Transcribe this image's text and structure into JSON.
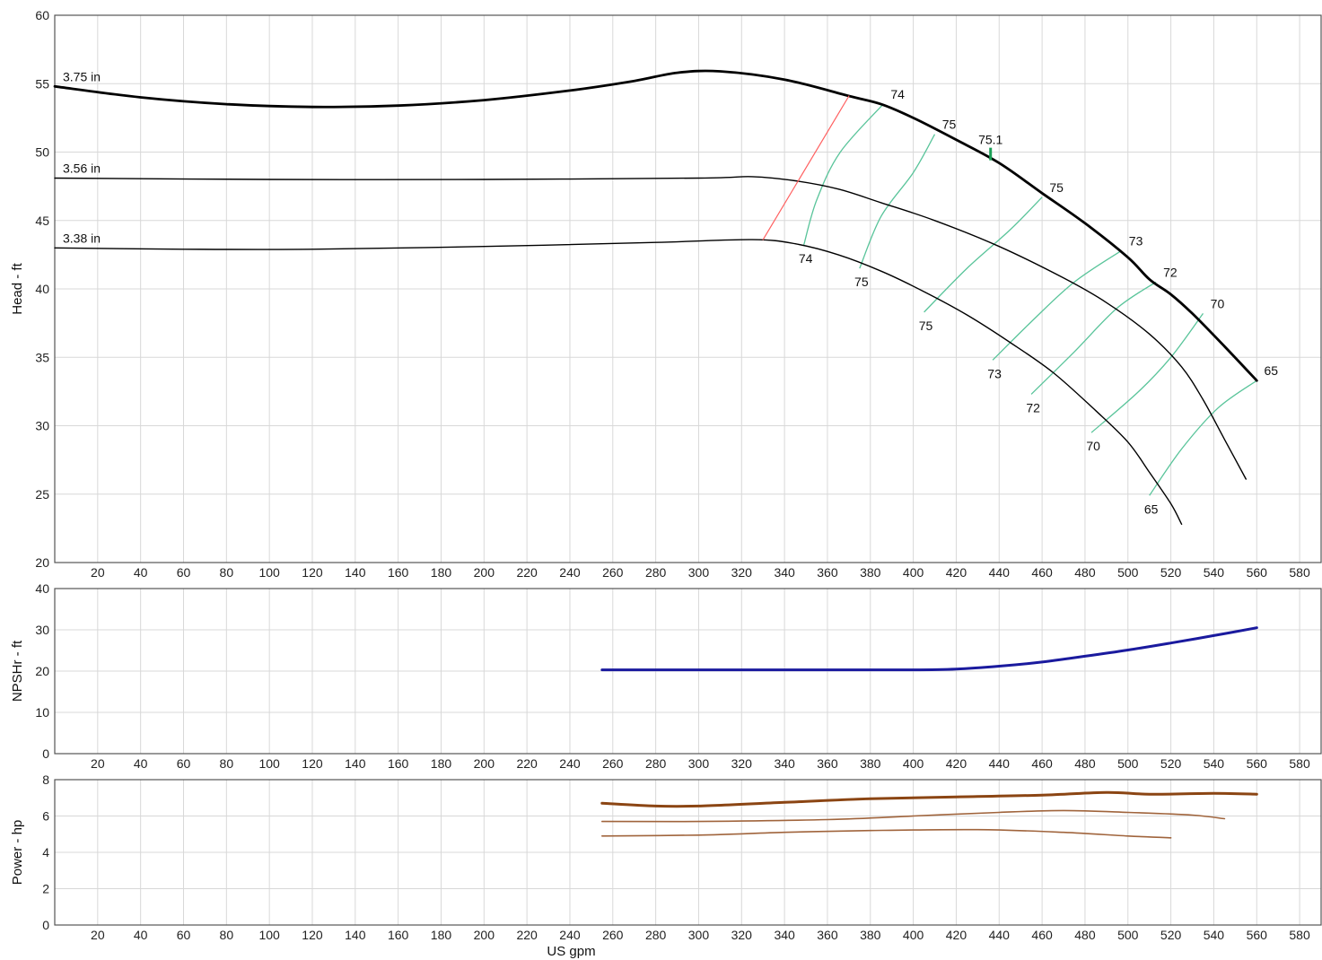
{
  "chart_data": [
    {
      "type": "line",
      "panel": "head",
      "ylabel": "Head - ft",
      "xlim": [
        0,
        590
      ],
      "ylim": [
        20,
        60
      ],
      "x_ticks": [
        20,
        40,
        60,
        80,
        100,
        120,
        140,
        160,
        180,
        200,
        220,
        240,
        260,
        280,
        300,
        320,
        340,
        360,
        380,
        400,
        420,
        440,
        460,
        480,
        500,
        520,
        540,
        560,
        580
      ],
      "y_ticks": [
        20,
        25,
        30,
        35,
        40,
        45,
        50,
        55,
        60
      ],
      "grid": true,
      "series": [
        {
          "name": "3.75 in",
          "role": "impeller",
          "color": "#000000",
          "points": [
            [
              0,
              54.8
            ],
            [
              40,
              54.0
            ],
            [
              80,
              53.5
            ],
            [
              120,
              53.3
            ],
            [
              160,
              53.4
            ],
            [
              200,
              53.8
            ],
            [
              240,
              54.5
            ],
            [
              270,
              55.2
            ],
            [
              290,
              55.8
            ],
            [
              310,
              55.9
            ],
            [
              340,
              55.3
            ],
            [
              370,
              54.1
            ],
            [
              385,
              53.5
            ],
            [
              400,
              52.5
            ],
            [
              420,
              50.9
            ],
            [
              440,
              49.2
            ],
            [
              460,
              47.0
            ],
            [
              480,
              44.8
            ],
            [
              500,
              42.3
            ],
            [
              510,
              40.7
            ],
            [
              520,
              39.6
            ],
            [
              530,
              38.2
            ],
            [
              545,
              35.8
            ],
            [
              560,
              33.3
            ]
          ]
        },
        {
          "name": "3.56 in",
          "role": "impeller",
          "color": "#000000",
          "points": [
            [
              0,
              48.1
            ],
            [
              100,
              48.0
            ],
            [
              200,
              48.0
            ],
            [
              300,
              48.1
            ],
            [
              325,
              48.2
            ],
            [
              345,
              47.9
            ],
            [
              365,
              47.3
            ],
            [
              385,
              46.3
            ],
            [
              410,
              45.0
            ],
            [
              440,
              43.1
            ],
            [
              470,
              40.8
            ],
            [
              490,
              39.0
            ],
            [
              510,
              36.7
            ],
            [
              525,
              34.3
            ],
            [
              535,
              31.9
            ],
            [
              545,
              29.0
            ],
            [
              555,
              26.1
            ]
          ]
        },
        {
          "name": "3.38 in",
          "role": "impeller",
          "color": "#000000",
          "points": [
            [
              0,
              43.0
            ],
            [
              60,
              42.9
            ],
            [
              120,
              42.9
            ],
            [
              200,
              43.1
            ],
            [
              280,
              43.4
            ],
            [
              325,
              43.6
            ],
            [
              345,
              43.3
            ],
            [
              365,
              42.5
            ],
            [
              385,
              41.3
            ],
            [
              405,
              39.8
            ],
            [
              425,
              38.1
            ],
            [
              445,
              36.1
            ],
            [
              465,
              33.9
            ],
            [
              485,
              31.1
            ],
            [
              500,
              28.8
            ],
            [
              510,
              26.6
            ],
            [
              520,
              24.3
            ],
            [
              525,
              22.8
            ]
          ]
        },
        {
          "name": "NPSH limit",
          "role": "limit",
          "color": "#ff6060",
          "points": [
            [
              330,
              43.6
            ],
            [
              370,
              54.1
            ]
          ]
        }
      ],
      "efficiency_lines": [
        {
          "label": "74",
          "color": "#59c49a",
          "points": [
            [
              349,
              43.2
            ],
            [
              355,
              46.5
            ],
            [
              366,
              50.0
            ],
            [
              386,
              53.5
            ]
          ],
          "upper_label": "74",
          "lower_label": "74"
        },
        {
          "label": "75",
          "color": "#59c49a",
          "points": [
            [
              375,
              41.5
            ],
            [
              385,
              45.3
            ],
            [
              400,
              48.5
            ],
            [
              410,
              51.3
            ]
          ],
          "upper_label": "75",
          "lower_label": "75"
        },
        {
          "label": "75",
          "color": "#59c49a",
          "points": [
            [
              405,
              38.3
            ],
            [
              425,
              41.5
            ],
            [
              445,
              44.3
            ],
            [
              460,
              46.7
            ]
          ],
          "upper_label": "75",
          "lower_label": "75"
        },
        {
          "label": "73",
          "color": "#59c49a",
          "points": [
            [
              437,
              34.8
            ],
            [
              455,
              37.6
            ],
            [
              475,
              40.5
            ],
            [
              497,
              42.8
            ]
          ],
          "upper_label": "73",
          "lower_label": "73"
        },
        {
          "label": "72",
          "color": "#59c49a",
          "points": [
            [
              455,
              32.3
            ],
            [
              475,
              35.4
            ],
            [
              495,
              38.6
            ],
            [
              513,
              40.5
            ]
          ],
          "upper_label": "72",
          "lower_label": "72"
        },
        {
          "label": "70",
          "color": "#59c49a",
          "points": [
            [
              483,
              29.5
            ],
            [
              505,
              32.5
            ],
            [
              520,
              35.0
            ],
            [
              535,
              38.2
            ]
          ],
          "upper_label": "70",
          "lower_label": "70"
        },
        {
          "label": "65",
          "color": "#59c49a",
          "points": [
            [
              510,
              24.9
            ],
            [
              525,
              28.3
            ],
            [
              542,
              31.3
            ],
            [
              560,
              33.3
            ]
          ],
          "upper_label": "65",
          "lower_label": "65"
        }
      ],
      "bep_marker": {
        "label": "75.1",
        "x": 436,
        "y": 49.4,
        "color": "#1a9e55"
      }
    },
    {
      "type": "line",
      "panel": "npsh",
      "ylabel": "NPSHr - ft",
      "xlim": [
        0,
        590
      ],
      "ylim": [
        0,
        40
      ],
      "x_ticks": [
        20,
        40,
        60,
        80,
        100,
        120,
        140,
        160,
        180,
        200,
        220,
        240,
        260,
        280,
        300,
        320,
        340,
        360,
        380,
        400,
        420,
        440,
        460,
        480,
        500,
        520,
        540,
        560,
        580
      ],
      "y_ticks": [
        0,
        10,
        20,
        30,
        40
      ],
      "grid": true,
      "series": [
        {
          "name": "NPSHr",
          "color": "#1a1a9e",
          "points": [
            [
              255,
              20.3
            ],
            [
              300,
              20.3
            ],
            [
              350,
              20.3
            ],
            [
              400,
              20.3
            ],
            [
              420,
              20.5
            ],
            [
              440,
              21.2
            ],
            [
              460,
              22.2
            ],
            [
              480,
              23.6
            ],
            [
              500,
              25.1
            ],
            [
              520,
              26.8
            ],
            [
              540,
              28.6
            ],
            [
              560,
              30.5
            ]
          ]
        }
      ]
    },
    {
      "type": "line",
      "panel": "power",
      "ylabel": "Power - hp",
      "xlabel": "US gpm",
      "xlim": [
        0,
        590
      ],
      "ylim": [
        0,
        8
      ],
      "x_ticks": [
        20,
        40,
        60,
        80,
        100,
        120,
        140,
        160,
        180,
        200,
        220,
        240,
        260,
        280,
        300,
        320,
        340,
        360,
        380,
        400,
        420,
        440,
        460,
        480,
        500,
        520,
        540,
        560,
        580
      ],
      "y_ticks": [
        0,
        2,
        4,
        6,
        8
      ],
      "grid": true,
      "series": [
        {
          "name": "3.75 in",
          "color": "#8b4513",
          "width": 3,
          "points": [
            [
              255,
              6.7
            ],
            [
              280,
              6.55
            ],
            [
              300,
              6.55
            ],
            [
              340,
              6.75
            ],
            [
              380,
              6.95
            ],
            [
              420,
              7.05
            ],
            [
              460,
              7.15
            ],
            [
              490,
              7.3
            ],
            [
              510,
              7.2
            ],
            [
              540,
              7.25
            ],
            [
              560,
              7.2
            ]
          ]
        },
        {
          "name": "3.56 in",
          "color": "#a0643c",
          "width": 1.6,
          "points": [
            [
              255,
              5.7
            ],
            [
              300,
              5.7
            ],
            [
              360,
              5.8
            ],
            [
              400,
              6.0
            ],
            [
              440,
              6.2
            ],
            [
              470,
              6.3
            ],
            [
              500,
              6.2
            ],
            [
              530,
              6.05
            ],
            [
              545,
              5.85
            ]
          ]
        },
        {
          "name": "3.38 in",
          "color": "#a0643c",
          "width": 1.6,
          "points": [
            [
              255,
              4.9
            ],
            [
              300,
              4.95
            ],
            [
              340,
              5.1
            ],
            [
              380,
              5.2
            ],
            [
              430,
              5.25
            ],
            [
              470,
              5.1
            ],
            [
              500,
              4.9
            ],
            [
              520,
              4.8
            ]
          ]
        }
      ]
    }
  ]
}
